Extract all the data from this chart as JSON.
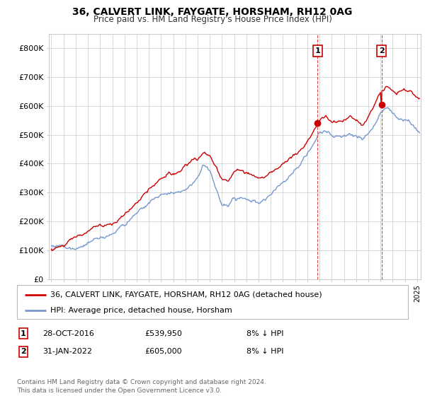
{
  "title": "36, CALVERT LINK, FAYGATE, HORSHAM, RH12 0AG",
  "subtitle": "Price paid vs. HM Land Registry's House Price Index (HPI)",
  "background_color": "#ffffff",
  "plot_bg_color": "#ffffff",
  "grid_color": "#cccccc",
  "hpi_color": "#7799cc",
  "hpi_fill_color": "#c8d8f0",
  "price_color": "#cc0000",
  "sale1_date_x": 2016.83,
  "sale1_price": 539950,
  "sale2_date_x": 2022.08,
  "sale2_price": 605000,
  "legend_property": "36, CALVERT LINK, FAYGATE, HORSHAM, RH12 0AG (detached house)",
  "legend_hpi": "HPI: Average price, detached house, Horsham",
  "footer": "Contains HM Land Registry data © Crown copyright and database right 2024.\nThis data is licensed under the Open Government Licence v3.0.",
  "ylim": [
    0,
    850000
  ],
  "xlim_start": 1994.8,
  "xlim_end": 2025.3
}
